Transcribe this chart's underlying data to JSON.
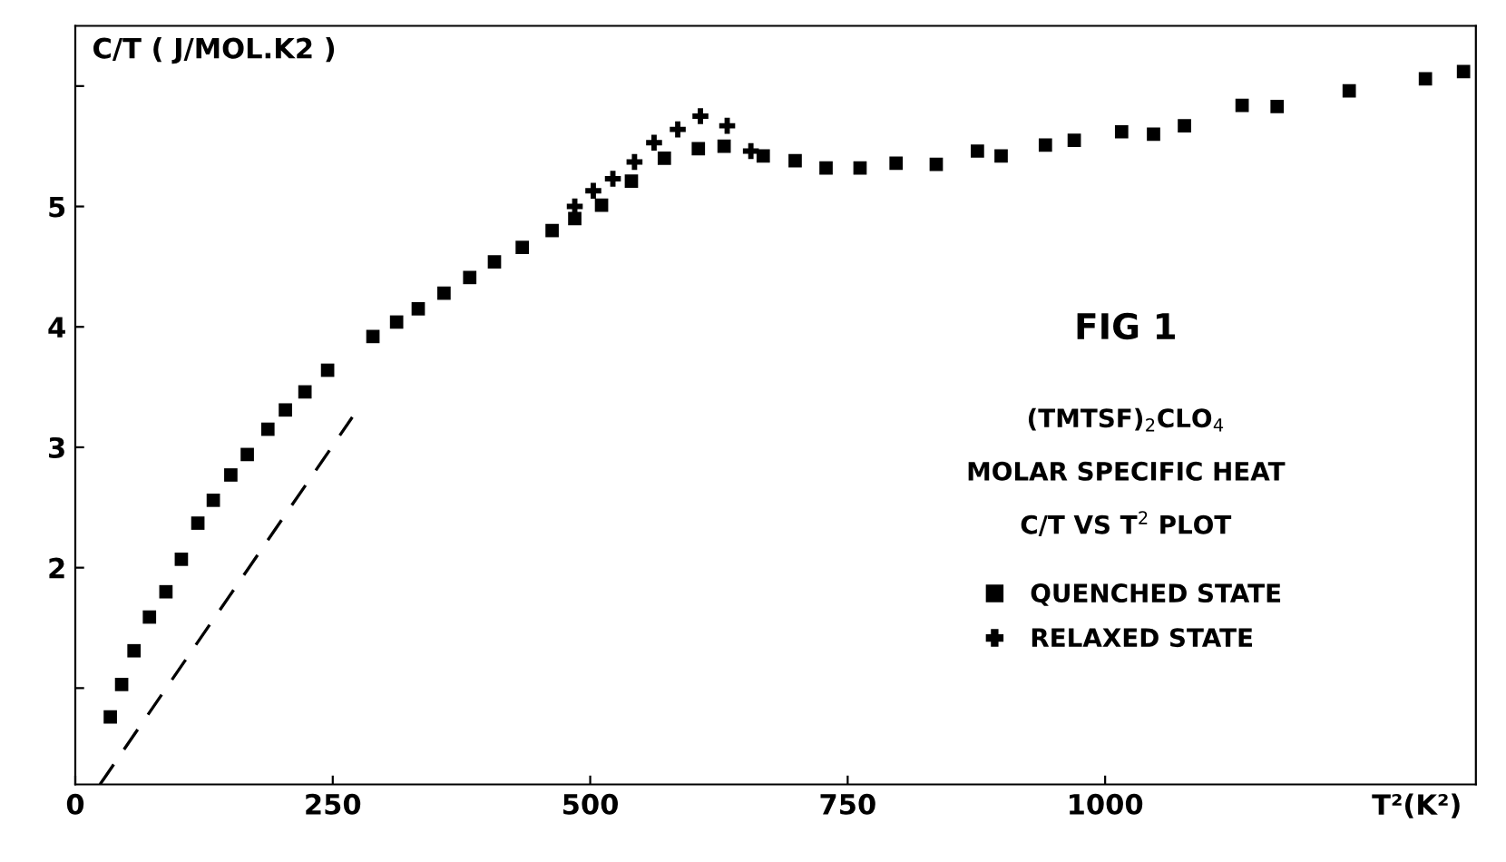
{
  "chart_data": {
    "type": "scatter",
    "ylabel": "C/T ( J/MOL.K2 )",
    "xlabel": "T²(K²)",
    "annotations": [
      "FIG 1",
      "(TMTSF)$_{2}$CLO$_{4}$",
      "MOLAR SPECIFIC HEAT",
      "C/T VS T$^{2}$ PLOT"
    ],
    "xlim": [
      0,
      1360
    ],
    "xticks": [
      0,
      250,
      500,
      750,
      1000
    ],
    "ylim": [
      0.2,
      6.5
    ],
    "yticks": [
      {
        "value": 1,
        "label": null
      },
      2,
      3,
      4,
      5,
      {
        "value": 6,
        "label": null
      }
    ],
    "grid": false,
    "legend": "right",
    "series": [
      {
        "name": "QUENCHED STATE",
        "color": "#000000",
        "marker": "square",
        "x": [
          34,
          45,
          57,
          72,
          88,
          103,
          119,
          134,
          151,
          167,
          187,
          204,
          223,
          245,
          289,
          312,
          333,
          358,
          383,
          407,
          434,
          463,
          485,
          511,
          540,
          572,
          605,
          630,
          668,
          699,
          729,
          762,
          797,
          836,
          876,
          899,
          942,
          970,
          1016,
          1047,
          1077,
          1133,
          1167,
          1237,
          1311,
          1348
        ],
        "values": [
          0.76,
          1.03,
          1.31,
          1.59,
          1.8,
          2.07,
          2.37,
          2.56,
          2.77,
          2.94,
          3.15,
          3.31,
          3.46,
          3.64,
          3.92,
          4.04,
          4.15,
          4.28,
          4.41,
          4.54,
          4.66,
          4.8,
          4.9,
          5.01,
          5.21,
          5.4,
          5.48,
          5.5,
          5.42,
          5.38,
          5.32,
          5.32,
          5.36,
          5.35,
          5.46,
          5.42,
          5.51,
          5.55,
          5.62,
          5.6,
          5.67,
          5.84,
          5.83,
          5.96,
          6.06,
          6.12
        ]
      },
      {
        "name": "RELAXED STATE",
        "color": "#000000",
        "marker": "cross",
        "x": [
          485,
          503,
          522,
          543,
          562,
          585,
          607,
          633,
          656
        ],
        "values": [
          5.0,
          5.13,
          5.23,
          5.37,
          5.53,
          5.64,
          5.75,
          5.67,
          5.46
        ]
      },
      {
        "type": "line",
        "color": "#000000",
        "line_style": "dashed",
        "marker": "none",
        "x": [
          24,
          269
        ],
        "values": [
          0.2,
          3.25
        ]
      }
    ]
  }
}
